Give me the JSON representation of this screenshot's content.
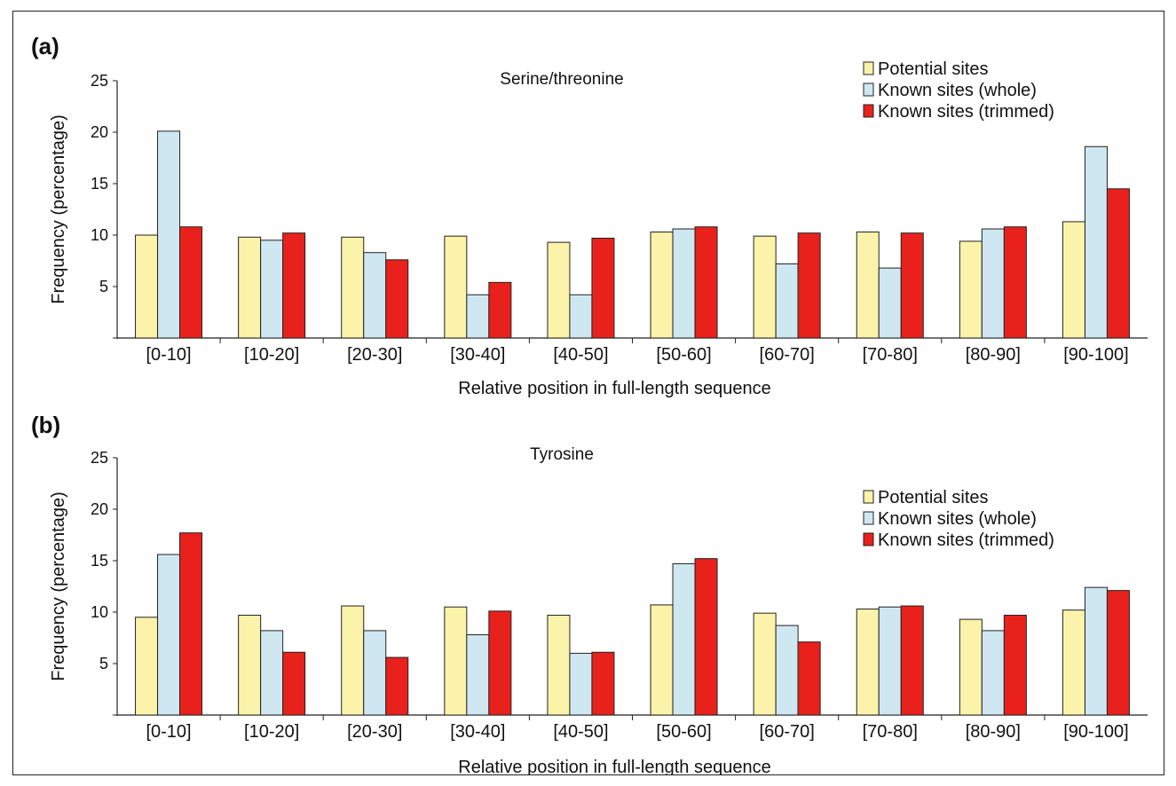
{
  "colors": {
    "potential": "#fbf3a9",
    "whole": "#cfe7f1",
    "trimmed": "#e8211c",
    "axis": "#222222"
  },
  "chart_data": [
    {
      "type": "bar",
      "panel": "(a)",
      "title": "Serine/threonine",
      "xlabel": "Relative position in full-length sequence",
      "ylabel": "Frequency (percentage)",
      "ylim": [
        0,
        25
      ],
      "yticks": [
        5,
        10,
        15,
        20,
        25
      ],
      "legend_position": "top-right",
      "categories": [
        "[0-10]",
        "[10-20]",
        "[20-30]",
        "[30-40]",
        "[40-50]",
        "[50-60]",
        "[60-70]",
        "[70-80]",
        "[80-90]",
        "[90-100]"
      ],
      "series": [
        {
          "name": "Potential sites",
          "color_key": "potential",
          "values": [
            10.0,
            9.8,
            9.8,
            9.9,
            9.3,
            10.3,
            9.9,
            10.3,
            9.4,
            11.3
          ]
        },
        {
          "name": "Known sites (whole)",
          "color_key": "whole",
          "values": [
            20.1,
            9.5,
            8.3,
            4.2,
            4.2,
            10.6,
            7.2,
            6.8,
            10.6,
            18.6
          ]
        },
        {
          "name": "Known sites (trimmed)",
          "color_key": "trimmed",
          "values": [
            10.8,
            10.2,
            7.6,
            5.4,
            9.7,
            10.8,
            10.2,
            10.2,
            10.8,
            14.5
          ]
        }
      ]
    },
    {
      "type": "bar",
      "panel": "(b)",
      "title": "Tyrosine",
      "xlabel": "Relative position in full-length sequence",
      "ylabel": "Frequency (percentage)",
      "ylim": [
        0,
        25
      ],
      "yticks": [
        5,
        10,
        15,
        20,
        25
      ],
      "legend_position": "top-right",
      "categories": [
        "[0-10]",
        "[10-20]",
        "[20-30]",
        "[30-40]",
        "[40-50]",
        "[50-60]",
        "[60-70]",
        "[70-80]",
        "[80-90]",
        "[90-100]"
      ],
      "series": [
        {
          "name": "Potential sites",
          "color_key": "potential",
          "values": [
            9.5,
            9.7,
            10.6,
            10.5,
            9.7,
            10.7,
            9.9,
            10.3,
            9.3,
            10.2
          ]
        },
        {
          "name": "Known sites (whole)",
          "color_key": "whole",
          "values": [
            15.6,
            8.2,
            8.2,
            7.8,
            6.0,
            14.7,
            8.7,
            10.5,
            8.2,
            12.4
          ]
        },
        {
          "name": "Known sites (trimmed)",
          "color_key": "trimmed",
          "values": [
            17.7,
            6.1,
            5.6,
            10.1,
            6.1,
            15.2,
            7.1,
            10.6,
            9.7,
            12.1
          ]
        }
      ]
    }
  ]
}
